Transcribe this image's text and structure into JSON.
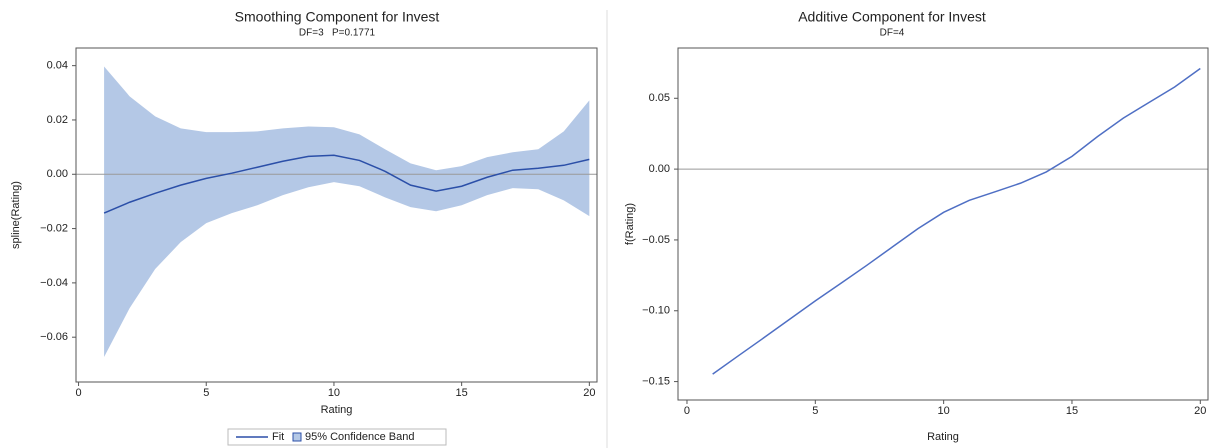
{
  "chart_data": [
    {
      "type": "band-line",
      "title": "Smoothing Component for Invest",
      "subtitle": "DF=3   P=0.1771",
      "x_label": "Rating",
      "y_label": "spline(Rating)",
      "x": [
        1,
        2,
        3,
        4,
        5,
        6,
        7,
        8,
        9,
        10,
        11,
        12,
        13,
        14,
        15,
        16,
        17,
        18,
        19,
        20
      ],
      "series": [
        {
          "name": "Fit",
          "color": "#2b4fa8",
          "values": [
            -0.0143,
            -0.0103,
            -0.007,
            -0.004,
            -0.0015,
            0.0004,
            0.0026,
            0.0048,
            0.0066,
            0.007,
            0.0051,
            0.0011,
            -0.004,
            -0.0062,
            -0.0044,
            -0.0011,
            0.0015,
            0.0022,
            0.0033,
            0.0055
          ]
        }
      ],
      "band": {
        "name": "95% Confidence Band",
        "color": "#b4c8e6",
        "upper": [
          0.0397,
          0.0287,
          0.0213,
          0.0169,
          0.0155,
          0.0155,
          0.0158,
          0.0169,
          0.0176,
          0.0173,
          0.0147,
          0.0092,
          0.004,
          0.0015,
          0.003,
          0.0063,
          0.0081,
          0.0092,
          0.0158,
          0.0272
        ],
        "lower": [
          -0.0673,
          -0.0493,
          -0.0349,
          -0.025,
          -0.018,
          -0.0143,
          -0.0114,
          -0.0077,
          -0.0048,
          -0.0029,
          -0.0044,
          -0.0085,
          -0.0121,
          -0.0136,
          -0.0114,
          -0.0077,
          -0.0051,
          -0.0055,
          -0.0096,
          -0.0154
        ]
      },
      "reference_line": 0,
      "xlim": [
        -0.1,
        20.3
      ],
      "ylim": [
        -0.0765,
        0.0465
      ],
      "xticks": [
        0,
        5,
        10,
        15,
        20
      ],
      "yticks": [
        {
          "value": -0.06,
          "label": "−0.06"
        },
        {
          "value": -0.04,
          "label": "−0.04"
        },
        {
          "value": -0.02,
          "label": "−0.02"
        },
        {
          "value": 0,
          "label": "0.00"
        },
        0.02,
        0.04
      ],
      "legend": "bottom"
    },
    {
      "type": "line",
      "title": "Additive Component for Invest",
      "subtitle": "DF=4",
      "x_label": "Rating",
      "y_label": "f(Rating)",
      "x": [
        1,
        2,
        3,
        4,
        5,
        6,
        7,
        8,
        9,
        10,
        11,
        12,
        13,
        14,
        15,
        16,
        17,
        18,
        19,
        20
      ],
      "series": [
        {
          "name": "f(Rating)",
          "color": "#4f6fc4",
          "values": [
            -0.1447,
            -0.1318,
            -0.119,
            -0.106,
            -0.093,
            -0.0806,
            -0.068,
            -0.055,
            -0.042,
            -0.0305,
            -0.022,
            -0.016,
            -0.0099,
            -0.002,
            0.009,
            0.023,
            0.036,
            0.047,
            0.058,
            0.071
          ]
        }
      ],
      "reference_line": 0,
      "xlim": [
        -0.35,
        20.3
      ],
      "ylim": [
        -0.163,
        0.0855
      ],
      "xticks": [
        0,
        5,
        10,
        15,
        20
      ],
      "yticks": [
        {
          "value": -0.15,
          "label": "−0.15"
        },
        {
          "value": -0.1,
          "label": "−0.10"
        },
        {
          "value": -0.05,
          "label": "−0.05"
        },
        {
          "value": 0,
          "label": "0.00"
        },
        0.05
      ]
    }
  ]
}
